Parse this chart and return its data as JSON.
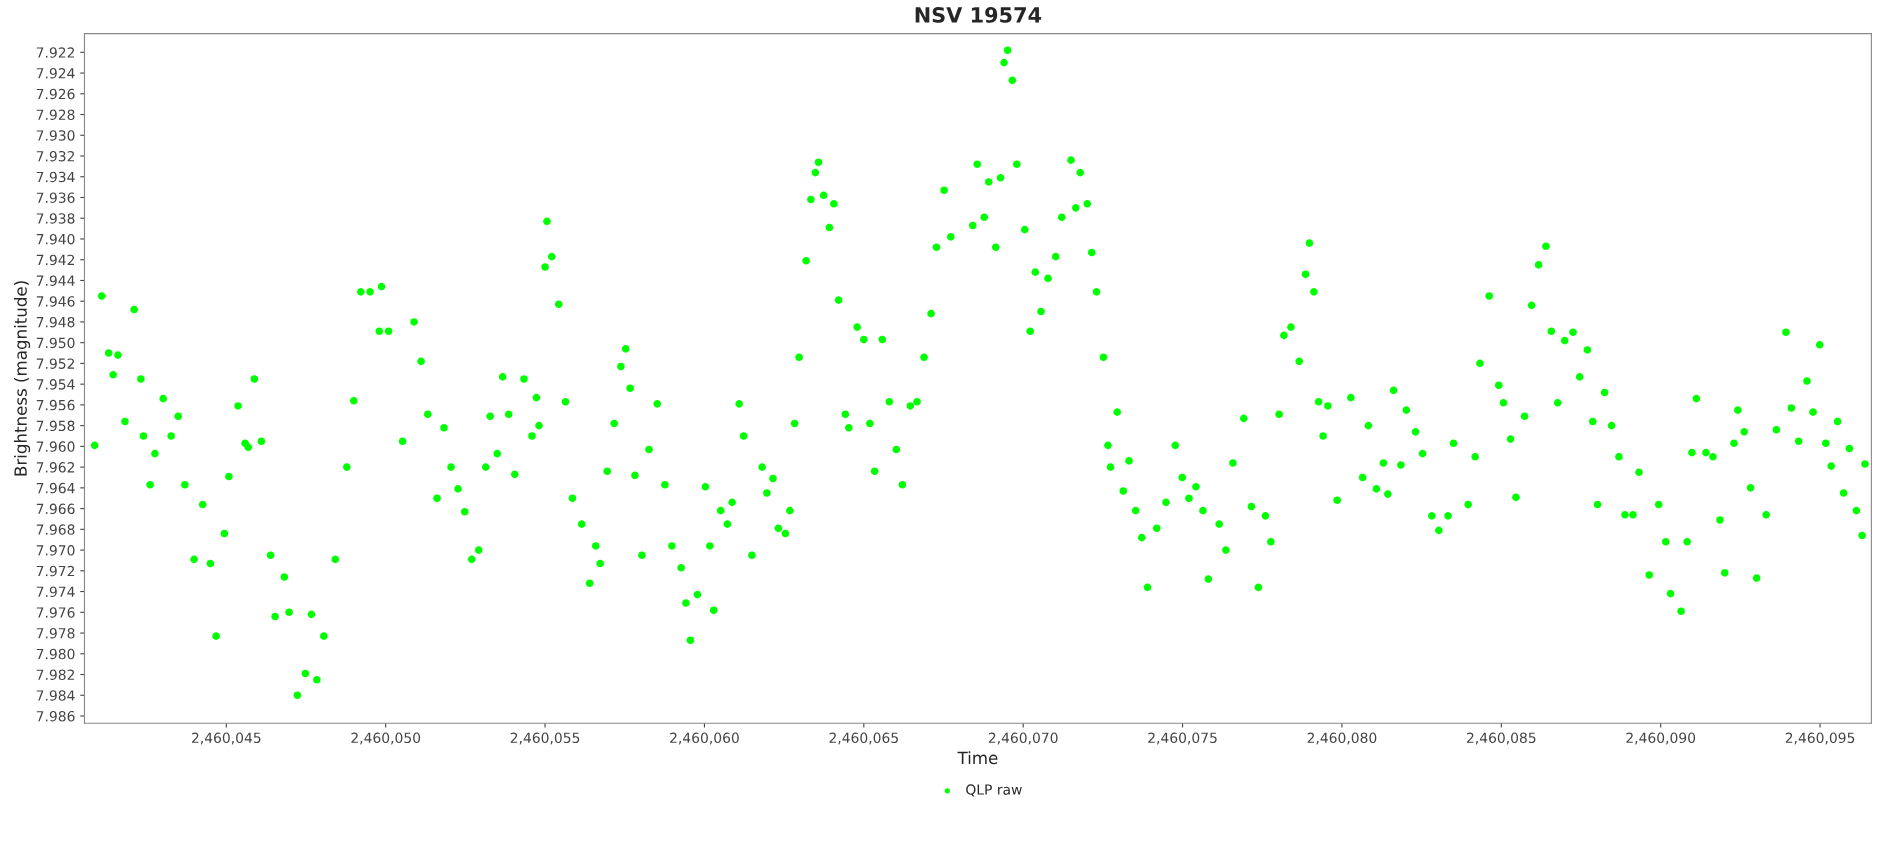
{
  "chart_data": {
    "type": "scatter",
    "title": "NSV 19574",
    "xlabel": "Time",
    "ylabel": "Brightness (magnitude)",
    "xlim": [
      2460040.55,
      2460096.61
    ],
    "ylim": [
      7.9867,
      7.9202
    ],
    "xticks": [
      {
        "value": 2460045,
        "label": "2,460,045"
      },
      {
        "value": 2460050,
        "label": "2,460,050"
      },
      {
        "value": 2460055,
        "label": "2,460,055"
      },
      {
        "value": 2460060,
        "label": "2,460,060"
      },
      {
        "value": 2460065,
        "label": "2,460,065"
      },
      {
        "value": 2460070,
        "label": "2,460,070"
      },
      {
        "value": 2460075,
        "label": "2,460,075"
      },
      {
        "value": 2460080,
        "label": "2,460,080"
      },
      {
        "value": 2460085,
        "label": "2,460,085"
      },
      {
        "value": 2460090,
        "label": "2,460,090"
      },
      {
        "value": 2460095,
        "label": "2,460,095"
      }
    ],
    "yticks": [
      7.922,
      7.924,
      7.926,
      7.928,
      {
        "value": 7.93,
        "label": "7.930"
      },
      7.932,
      7.934,
      7.936,
      7.938,
      {
        "value": 7.94,
        "label": "7.940"
      },
      7.942,
      7.944,
      7.946,
      7.948,
      {
        "value": 7.95,
        "label": "7.950"
      },
      7.952,
      7.954,
      7.956,
      7.958,
      {
        "value": 7.96,
        "label": "7.960"
      },
      7.962,
      7.964,
      7.966,
      7.968,
      {
        "value": 7.97,
        "label": "7.970"
      },
      7.972,
      7.974,
      7.976,
      7.978,
      {
        "value": 7.98,
        "label": "7.980"
      },
      7.982,
      7.984,
      7.986
    ],
    "grid": false,
    "legend": "bottom",
    "marker": "circle",
    "series": [
      {
        "name": "QLP raw",
        "color": "#00ff00",
        "x": [
          2460040.87,
          2460041.09,
          2460041.31,
          2460041.45,
          2460041.6,
          2460041.82,
          2460042.11,
          2460042.32,
          2460042.4,
          2460042.61,
          2460042.76,
          2460043.02,
          2460043.27,
          2460043.49,
          2460043.7,
          2460043.99,
          2460044.26,
          2460044.5,
          2460044.68,
          2460044.94,
          2460045.08,
          2460045.37,
          2460045.59,
          2460045.69,
          2460045.88,
          2460046.1,
          2460046.39,
          2460046.53,
          2460046.82,
          2460046.97,
          2460047.23,
          2460047.48,
          2460047.67,
          2460047.84,
          2460048.06,
          2460048.42,
          2460048.78,
          2460049.0,
          2460049.22,
          2460049.51,
          2460049.8,
          2460049.87,
          2460050.09,
          2460050.53,
          2460050.89,
          2460051.11,
          2460051.32,
          2460051.61,
          2460051.83,
          2460052.05,
          2460052.27,
          2460052.48,
          2460052.7,
          2460052.92,
          2460053.14,
          2460053.28,
          2460053.5,
          2460053.67,
          2460053.86,
          2460054.05,
          2460054.34,
          2460054.59,
          2460054.73,
          2460054.81,
          2460055.0,
          2460055.06,
          2460055.21,
          2460055.43,
          2460055.64,
          2460055.86,
          2460056.15,
          2460056.4,
          2460056.59,
          2460056.73,
          2460056.95,
          2460057.17,
          2460057.38,
          2460057.53,
          2460057.67,
          2460057.82,
          2460058.04,
          2460058.26,
          2460058.52,
          2460058.76,
          2460058.98,
          2460059.27,
          2460059.42,
          2460059.56,
          2460059.78,
          2460060.03,
          2460060.17,
          2460060.29,
          2460060.51,
          2460060.72,
          2460060.87,
          2460061.09,
          2460061.23,
          2460061.49,
          2460061.81,
          2460061.96,
          2460062.15,
          2460062.32,
          2460062.54,
          2460062.68,
          2460062.83,
          2460062.97,
          2460063.19,
          2460063.34,
          2460063.48,
          2460063.58,
          2460063.74,
          2460063.92,
          2460064.06,
          2460064.21,
          2460064.42,
          2460064.53,
          2460064.79,
          2460065.0,
          2460065.19,
          2460065.34,
          2460065.58,
          2460065.8,
          2460066.02,
          2460066.21,
          2460066.46,
          2460066.67,
          2460066.89,
          2460067.11,
          2460067.28,
          2460067.52,
          2460067.73,
          2460068.42,
          2460068.56,
          2460068.78,
          2460068.92,
          2460069.14,
          2460069.29,
          2460069.4,
          2460069.51,
          2460069.66,
          2460069.8,
          2460070.05,
          2460070.22,
          2460070.38,
          2460070.56,
          2460070.78,
          2460071.02,
          2460071.21,
          2460071.5,
          2460071.65,
          2460071.79,
          2460072.01,
          2460072.15,
          2460072.3,
          2460072.52,
          2460072.66,
          2460072.74,
          2460072.95,
          2460073.14,
          2460073.32,
          2460073.53,
          2460073.72,
          2460073.9,
          2460074.19,
          2460074.48,
          2460074.77,
          2460074.99,
          2460075.2,
          2460075.42,
          2460075.64,
          2460075.81,
          2460076.15,
          2460076.36,
          2460076.58,
          2460076.92,
          2460077.16,
          2460077.38,
          2460077.6,
          2460077.77,
          2460078.03,
          2460078.18,
          2460078.4,
          2460078.66,
          2460078.86,
          2460078.98,
          2460079.12,
          2460079.27,
          2460079.41,
          2460079.56,
          2460079.85,
          2460080.28,
          2460080.65,
          2460080.83,
          2460081.08,
          2460081.3,
          2460081.44,
          2460081.62,
          2460081.85,
          2460082.02,
          2460082.31,
          2460082.53,
          2460082.82,
          2460083.04,
          2460083.33,
          2460083.5,
          2460083.96,
          2460084.18,
          2460084.33,
          2460084.62,
          2460084.92,
          2460085.07,
          2460085.29,
          2460085.46,
          2460085.73,
          2460085.95,
          2460086.17,
          2460086.4,
          2460086.57,
          2460086.77,
          2460086.99,
          2460087.25,
          2460087.46,
          2460087.7,
          2460087.87,
          2460088.02,
          2460088.24,
          2460088.46,
          2460088.69,
          2460088.88,
          2460089.13,
          2460089.32,
          2460089.64,
          2460089.94,
          2460090.16,
          2460090.31,
          2460090.64,
          2460090.83,
          2460090.98,
          2460091.12,
          2460091.42,
          2460091.64,
          2460091.86,
          2460092.01,
          2460092.3,
          2460092.42,
          2460092.62,
          2460092.82,
          2460093.01,
          2460093.31,
          2460093.63,
          2460093.93,
          2460094.1,
          2460094.33,
          2460094.59,
          2460094.78,
          2460094.99,
          2460095.18,
          2460095.35,
          2460095.55,
          2460095.74,
          2460095.92,
          2460096.14,
          2460096.32,
          2460096.41
        ],
        "values": [
          7.9599,
          7.9455,
          7.951,
          7.9531,
          7.9512,
          7.9576,
          7.9468,
          7.9535,
          7.959,
          7.9637,
          7.9607,
          7.9554,
          7.959,
          7.9571,
          7.9637,
          7.9709,
          7.9656,
          7.9713,
          7.9783,
          7.9684,
          7.9629,
          7.9561,
          7.9597,
          7.9601,
          7.9535,
          7.9595,
          7.9705,
          7.9764,
          7.9726,
          7.976,
          7.984,
          7.9819,
          7.9762,
          7.9825,
          7.9783,
          7.9709,
          7.962,
          7.9556,
          7.9451,
          7.9451,
          7.9489,
          7.9446,
          7.9489,
          7.9595,
          7.948,
          7.9518,
          7.9569,
          7.965,
          7.9582,
          7.962,
          7.9641,
          7.9663,
          7.9709,
          7.97,
          7.962,
          7.9571,
          7.9607,
          7.9533,
          7.9569,
          7.9627,
          7.9535,
          7.959,
          7.9553,
          7.958,
          7.9427,
          7.9383,
          7.9417,
          7.9463,
          7.9557,
          7.965,
          7.9675,
          7.9732,
          7.9696,
          7.9713,
          7.9624,
          7.9578,
          7.9523,
          7.9506,
          7.9544,
          7.9628,
          7.9705,
          7.9603,
          7.9559,
          7.9637,
          7.9696,
          7.9717,
          7.9751,
          7.9787,
          7.9743,
          7.9639,
          7.9696,
          7.9758,
          7.9662,
          7.9675,
          7.9654,
          7.9559,
          7.959,
          7.9705,
          7.962,
          7.9645,
          7.9631,
          7.9679,
          7.9684,
          7.9662,
          7.9578,
          7.9514,
          7.9421,
          7.9362,
          7.9336,
          7.9326,
          7.9358,
          7.9389,
          7.9366,
          7.9459,
          7.9569,
          7.9582,
          7.9485,
          7.9497,
          7.9578,
          7.9624,
          7.9497,
          7.9557,
          7.9603,
          7.9637,
          7.9561,
          7.9557,
          7.9514,
          7.9472,
          7.9408,
          7.9353,
          7.9398,
          7.9387,
          7.9328,
          7.9379,
          7.9345,
          7.9408,
          7.9341,
          7.923,
          7.9218,
          7.9247,
          7.9328,
          7.9391,
          7.9489,
          7.9432,
          7.947,
          7.9438,
          7.9417,
          7.9379,
          7.9324,
          7.937,
          7.9336,
          7.9366,
          7.9413,
          7.9451,
          7.9514,
          7.9599,
          7.962,
          7.9567,
          7.9643,
          7.9614,
          7.9662,
          7.9688,
          7.9736,
          7.9679,
          7.9654,
          7.9599,
          7.963,
          7.965,
          7.9639,
          7.9662,
          7.9728,
          7.9675,
          7.97,
          7.9616,
          7.9573,
          7.9658,
          7.9736,
          7.9667,
          7.9692,
          7.9569,
          7.9493,
          7.9485,
          7.9518,
          7.9434,
          7.9404,
          7.9451,
          7.9557,
          7.959,
          7.9561,
          7.9652,
          7.9553,
          7.963,
          7.958,
          7.9641,
          7.9616,
          7.9646,
          7.9546,
          7.9618,
          7.9565,
          7.9586,
          7.9607,
          7.9667,
          7.9681,
          7.9667,
          7.9597,
          7.9656,
          7.961,
          7.952,
          7.9455,
          7.9541,
          7.9558,
          7.9593,
          7.9649,
          7.9571,
          7.9464,
          7.9425,
          7.9407,
          7.9489,
          7.9558,
          7.9498,
          7.949,
          7.9533,
          7.9507,
          7.9576,
          7.9656,
          7.9548,
          7.958,
          7.961,
          7.9666,
          7.9666,
          7.9625,
          7.9724,
          7.9656,
          7.9692,
          7.9742,
          7.9759,
          7.9692,
          7.9606,
          7.9554,
          7.9606,
          7.961,
          7.9671,
          7.9722,
          7.9597,
          7.9565,
          7.9586,
          7.964,
          7.9727,
          7.9666,
          7.9584,
          7.949,
          7.9563,
          7.9595,
          7.9537,
          7.9567,
          7.9502,
          7.9597,
          7.9619,
          7.9576,
          7.9645,
          7.9602,
          7.9662,
          7.9686,
          7.9617
        ]
      }
    ]
  }
}
